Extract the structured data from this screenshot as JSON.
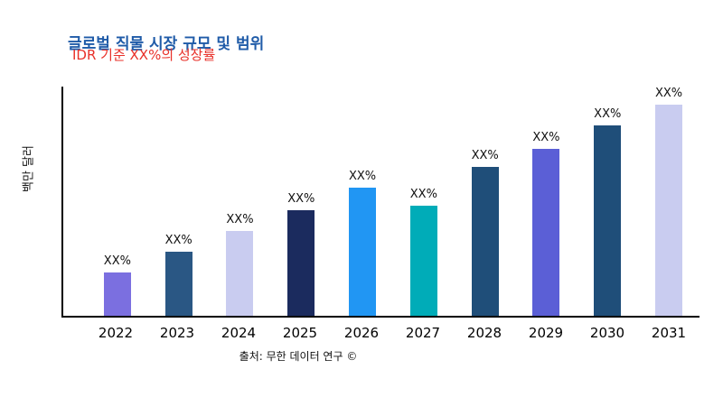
{
  "title": "글로벌 직물 시장 규모 및 범위",
  "title_color": "#1F5BA8",
  "annotation": "IDR 기준 XX%의 성장률",
  "annotation_color": "#E8312A",
  "y_axis_label": "백만 달러",
  "source": "출처: 무한 데이터 연구 ©",
  "chart_data": {
    "type": "bar",
    "title": "글로벌 직물 시장 규모 및 범위",
    "xlabel": "",
    "ylabel": "백만 달러",
    "categories": [
      "2022",
      "2023",
      "2024",
      "2025",
      "2026",
      "2027",
      "2028",
      "2029",
      "2030",
      "2031"
    ],
    "values": [
      19,
      28,
      37,
      46,
      56,
      48,
      65,
      73,
      83,
      92
    ],
    "bar_labels": [
      "XX%",
      "XX%",
      "XX%",
      "XX%",
      "XX%",
      "XX%",
      "XX%",
      "XX%",
      "XX%",
      "XX%"
    ],
    "colors": [
      "#7B6FE0",
      "#2A5784",
      "#C9CCF0",
      "#1B2B5E",
      "#2196F3",
      "#00ACB8",
      "#1F4E79",
      "#5B5FD6",
      "#1F4E79",
      "#C9CCF0"
    ],
    "ylim": [
      0,
      100
    ],
    "grid": false,
    "legend": false,
    "annotation": "IDR 기준 XX%의 성장률"
  }
}
